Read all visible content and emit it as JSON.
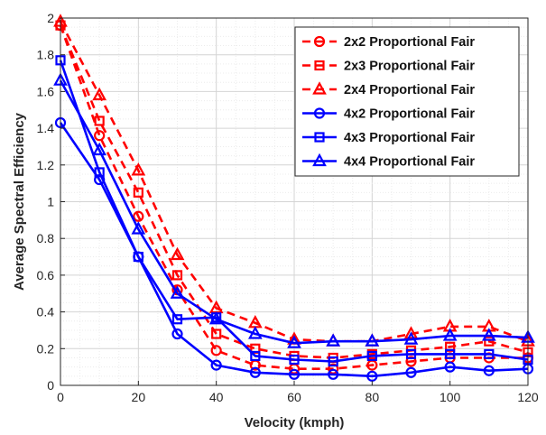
{
  "chart_data": {
    "type": "line",
    "xlabel": "Velocity (kmph)",
    "ylabel": "Average Spectral Efficiency",
    "xlim": [
      0,
      120
    ],
    "ylim": [
      0,
      2
    ],
    "xticks": [
      0,
      20,
      40,
      60,
      80,
      100,
      120
    ],
    "yticks": [
      0,
      0.2,
      0.4,
      0.6,
      0.8,
      1,
      1.2,
      1.4,
      1.6,
      1.8,
      2
    ],
    "x": [
      0,
      10,
      20,
      30,
      40,
      50,
      60,
      70,
      80,
      90,
      100,
      110,
      120
    ],
    "grid": true,
    "legend_position": "top-right",
    "series": [
      {
        "name": "2x2 Proportional Fair",
        "color": "#ff0000",
        "dash": "dashed",
        "marker": "circle",
        "values": [
          1.96,
          1.36,
          0.92,
          0.52,
          0.19,
          0.11,
          0.09,
          0.09,
          0.11,
          0.13,
          0.15,
          0.15,
          0.15
        ]
      },
      {
        "name": "2x3 Proportional Fair",
        "color": "#ff0000",
        "dash": "dashed",
        "marker": "square",
        "values": [
          1.96,
          1.44,
          1.05,
          0.6,
          0.28,
          0.2,
          0.16,
          0.15,
          0.17,
          0.19,
          0.21,
          0.24,
          0.18
        ]
      },
      {
        "name": "2x4 Proportional Fair",
        "color": "#ff0000",
        "dash": "dashed",
        "marker": "triangle",
        "values": [
          1.98,
          1.58,
          1.17,
          0.71,
          0.42,
          0.34,
          0.25,
          0.24,
          0.24,
          0.28,
          0.32,
          0.32,
          0.24
        ]
      },
      {
        "name": "4x2 Proportional Fair",
        "color": "#0000ff",
        "dash": "solid",
        "marker": "circle",
        "values": [
          1.43,
          1.12,
          0.7,
          0.28,
          0.11,
          0.07,
          0.06,
          0.06,
          0.05,
          0.07,
          0.1,
          0.08,
          0.09
        ]
      },
      {
        "name": "4x3 Proportional Fair",
        "color": "#0000ff",
        "dash": "solid",
        "marker": "square",
        "values": [
          1.77,
          1.16,
          0.7,
          0.36,
          0.37,
          0.16,
          0.14,
          0.13,
          0.16,
          0.17,
          0.17,
          0.17,
          0.14
        ]
      },
      {
        "name": "4x4 Proportional Fair",
        "color": "#0000ff",
        "dash": "solid",
        "marker": "triangle",
        "values": [
          1.66,
          1.28,
          0.85,
          0.5,
          0.36,
          0.28,
          0.23,
          0.24,
          0.24,
          0.25,
          0.27,
          0.27,
          0.26
        ]
      }
    ]
  }
}
